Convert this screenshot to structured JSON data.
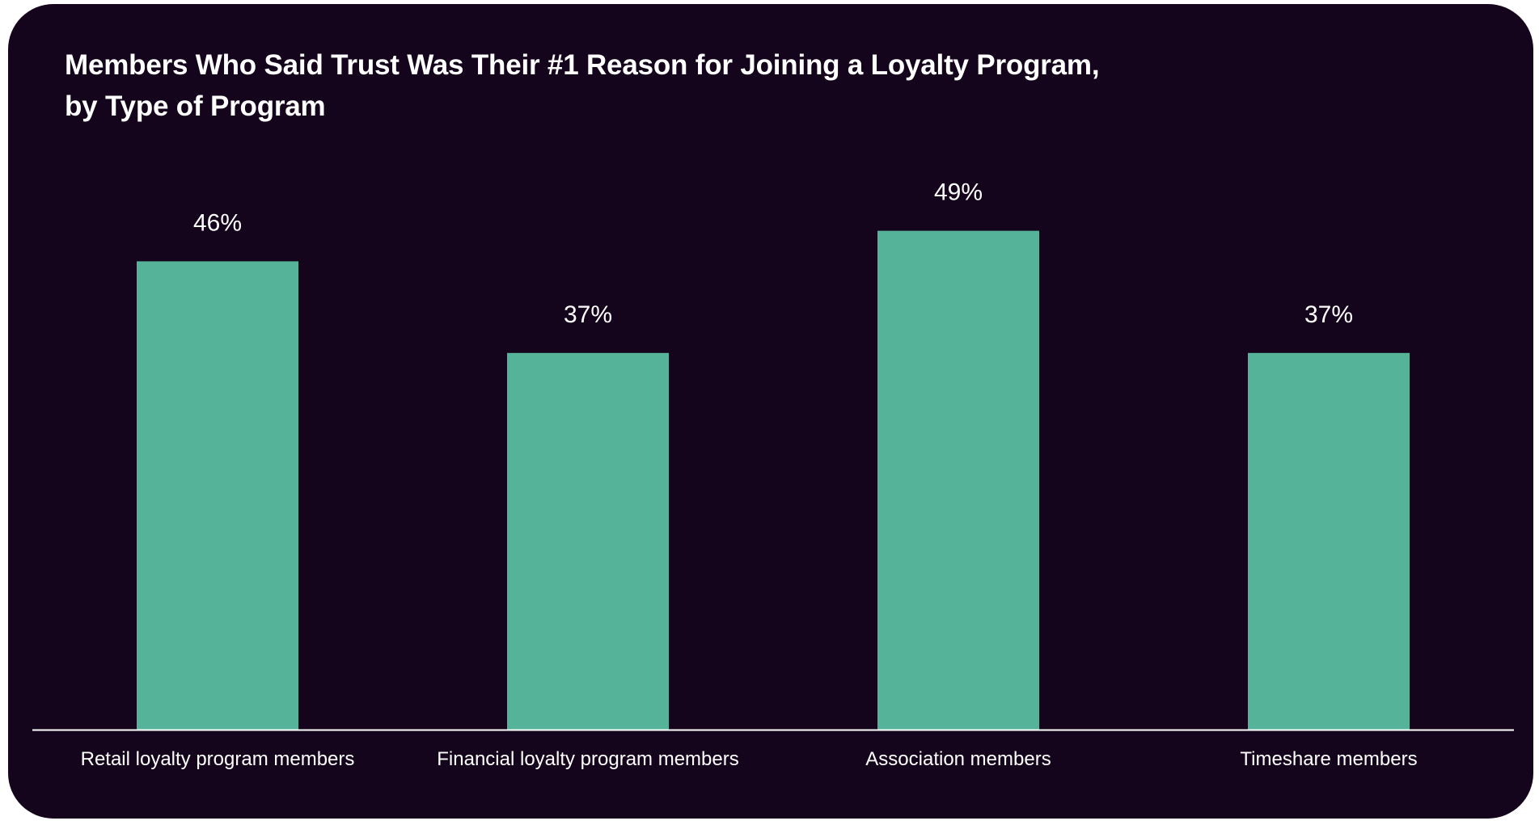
{
  "chart_data": {
    "type": "bar",
    "title": "Members Who Said Trust Was Their #1 Reason for Joining a Loyalty Program, by Type of Program",
    "title_lines": [
      "Members Who Said Trust Was Their #1 Reason for Joining a Loyalty Program,",
      "by Type of Program"
    ],
    "categories": [
      "Retail loyalty program members",
      "Financial loyalty program members",
      "Association members",
      "Timeshare members"
    ],
    "values": [
      46,
      37,
      49,
      37
    ],
    "value_labels": [
      "46%",
      "37%",
      "49%",
      "37%"
    ],
    "xlabel": "",
    "ylabel": "",
    "ylim": [
      0,
      100
    ],
    "grid": false,
    "legend": "none",
    "colors": {
      "background": "#15051c",
      "bar": "#55b399",
      "text": "#ffffff",
      "axis": "#ffffff"
    }
  }
}
